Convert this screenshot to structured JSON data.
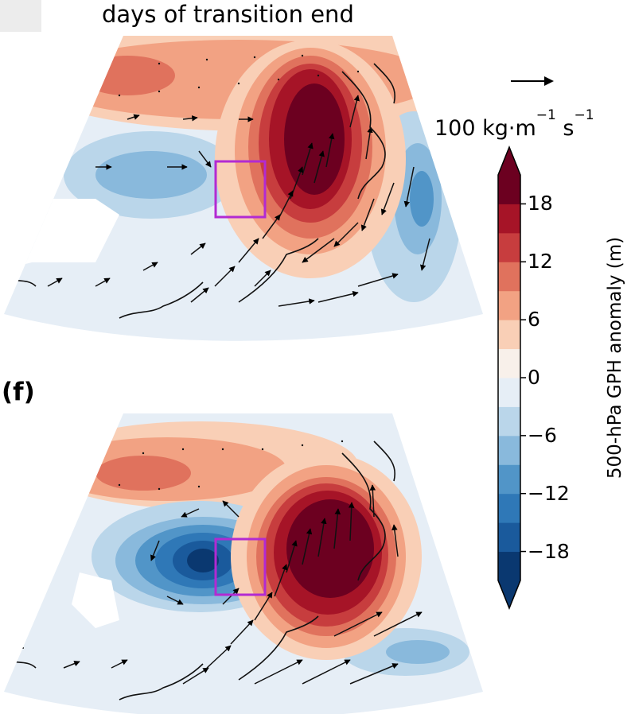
{
  "title": "days of transition end",
  "panel_labels": [
    "(f)"
  ],
  "reference_vector": {
    "label": "100 kg·m",
    "exp1": "−1",
    "unit2": " s",
    "exp2": "−1"
  },
  "colorbar": {
    "label": "500-hPa GPH anomaly (m)",
    "ticks": [
      "18",
      "12",
      "6",
      "0",
      "−6",
      "−12",
      "−18"
    ],
    "levels": [
      -21,
      -18,
      -15,
      -12,
      -9,
      -6,
      -3,
      0,
      3,
      6,
      9,
      12,
      15,
      18,
      21
    ],
    "colors": [
      "#0a3870",
      "#1a5a9c",
      "#2f78b7",
      "#5195c8",
      "#89b9dc",
      "#bad6ea",
      "#e6eef6",
      "#f8f0ea",
      "#f9cfb6",
      "#f2a283",
      "#e0725d",
      "#c73d3e",
      "#a61427",
      "#6c0020"
    ]
  },
  "box_color": "#b22ad2",
  "icons": [
    "vector-arrow-icon",
    "colorbar-extend-max-icon",
    "colorbar-extend-min-icon"
  ]
}
